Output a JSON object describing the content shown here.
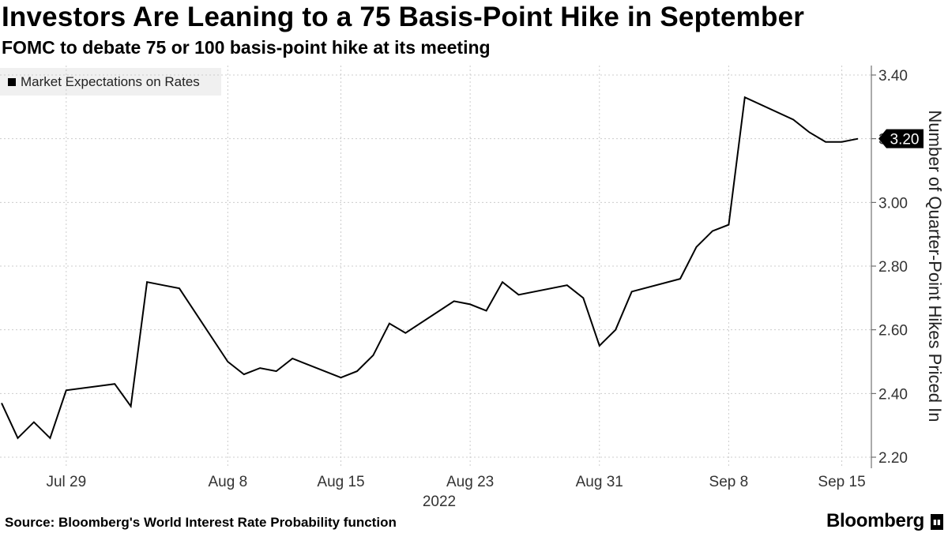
{
  "header": {
    "title": "Investors Are Leaning to a 75 Basis-Point Hike in September",
    "subtitle": "FOMC to debate 75 or 100 basis-point hike at its meeting"
  },
  "footer": {
    "source": "Source: Bloomberg's World Interest Rate Probability function",
    "brand": "Bloomberg"
  },
  "colors": {
    "line": "#000000",
    "legend_bg": "#f0f0f0",
    "grid": "#cccccc"
  },
  "chart_data": {
    "type": "line",
    "title": "Investors Are Leaning to a 75 Basis-Point Hike in September",
    "ylabel": "Number of Quarter-Point Hikes Priced In",
    "ylim": [
      2.2,
      3.4
    ],
    "y_ticks": [
      "2.20",
      "2.40",
      "2.60",
      "2.80",
      "3.00",
      "3.20",
      "3.40"
    ],
    "x_ticks": [
      "Jul 29",
      "Aug 8",
      "Aug 15",
      "Aug 23",
      "Aug 31",
      "Sep 8",
      "Sep 15"
    ],
    "x_year": "2022",
    "last_value_label": "3.20",
    "legend": [
      "Market Expectations on Rates"
    ],
    "grid": "horizontal dotted",
    "series": [
      {
        "name": "Market Expectations on Rates",
        "points": [
          {
            "date": "2022-07-25",
            "y": 2.37
          },
          {
            "date": "2022-07-26",
            "y": 2.26
          },
          {
            "date": "2022-07-27",
            "y": 2.31
          },
          {
            "date": "2022-07-28",
            "y": 2.26
          },
          {
            "date": "2022-07-29",
            "y": 2.41
          },
          {
            "date": "2022-08-01",
            "y": 2.43
          },
          {
            "date": "2022-08-02",
            "y": 2.36
          },
          {
            "date": "2022-08-03",
            "y": 2.75
          },
          {
            "date": "2022-08-04",
            "y": 2.74
          },
          {
            "date": "2022-08-05",
            "y": 2.73
          },
          {
            "date": "2022-08-08",
            "y": 2.5
          },
          {
            "date": "2022-08-09",
            "y": 2.46
          },
          {
            "date": "2022-08-10",
            "y": 2.48
          },
          {
            "date": "2022-08-11",
            "y": 2.47
          },
          {
            "date": "2022-08-12",
            "y": 2.51
          },
          {
            "date": "2022-08-15",
            "y": 2.45
          },
          {
            "date": "2022-08-16",
            "y": 2.47
          },
          {
            "date": "2022-08-17",
            "y": 2.52
          },
          {
            "date": "2022-08-18",
            "y": 2.62
          },
          {
            "date": "2022-08-19",
            "y": 2.59
          },
          {
            "date": "2022-08-22",
            "y": 2.69
          },
          {
            "date": "2022-08-23",
            "y": 2.68
          },
          {
            "date": "2022-08-24",
            "y": 2.66
          },
          {
            "date": "2022-08-25",
            "y": 2.75
          },
          {
            "date": "2022-08-26",
            "y": 2.71
          },
          {
            "date": "2022-08-29",
            "y": 2.74
          },
          {
            "date": "2022-08-30",
            "y": 2.7
          },
          {
            "date": "2022-08-31",
            "y": 2.55
          },
          {
            "date": "2022-09-01",
            "y": 2.6
          },
          {
            "date": "2022-09-02",
            "y": 2.72
          },
          {
            "date": "2022-09-05",
            "y": 2.76
          },
          {
            "date": "2022-09-06",
            "y": 2.86
          },
          {
            "date": "2022-09-07",
            "y": 2.91
          },
          {
            "date": "2022-09-08",
            "y": 2.93
          },
          {
            "date": "2022-09-09",
            "y": 3.33
          },
          {
            "date": "2022-09-12",
            "y": 3.26
          },
          {
            "date": "2022-09-13",
            "y": 3.22
          },
          {
            "date": "2022-09-14",
            "y": 3.19
          },
          {
            "date": "2022-09-15",
            "y": 3.19
          },
          {
            "date": "2022-09-16",
            "y": 3.2
          }
        ]
      }
    ]
  }
}
